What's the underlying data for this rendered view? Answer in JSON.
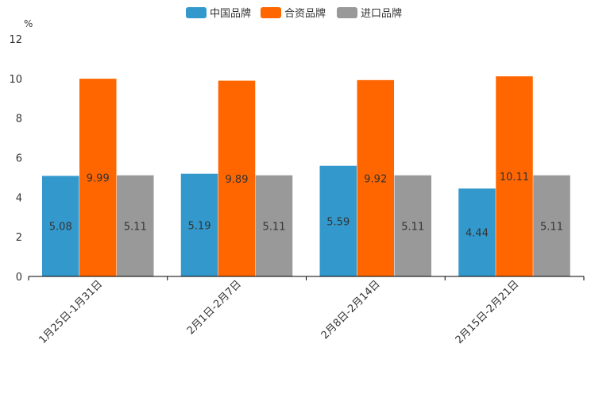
{
  "chart_data": {
    "type": "bar",
    "unit": "%",
    "categories": [
      "1月25日-1月31日",
      "2月1日-2月7日",
      "2月8日-2月14日",
      "2月15日-2月21日"
    ],
    "series": [
      {
        "name": "中国品牌",
        "color": "#3399cc",
        "values": [
          5.08,
          5.19,
          5.59,
          4.44
        ],
        "labels": [
          "5.08",
          "5.19",
          "5.59",
          "4.44"
        ]
      },
      {
        "name": "合资品牌",
        "color": "#ff6600",
        "values": [
          9.99,
          9.89,
          9.92,
          10.11
        ],
        "labels": [
          "9.99",
          "9.89",
          "9.92",
          "10.11"
        ]
      },
      {
        "name": "进口品牌",
        "color": "#999999",
        "values": [
          5.11,
          5.11,
          5.11,
          5.11
        ],
        "labels": [
          "5.11",
          "5.11",
          "5.11",
          "5.11"
        ]
      }
    ],
    "ylim": [
      0,
      12
    ],
    "yticks": [
      "0",
      "2",
      "4",
      "6",
      "8",
      "10",
      "12"
    ],
    "legend_position": "top-center",
    "grid": false
  }
}
